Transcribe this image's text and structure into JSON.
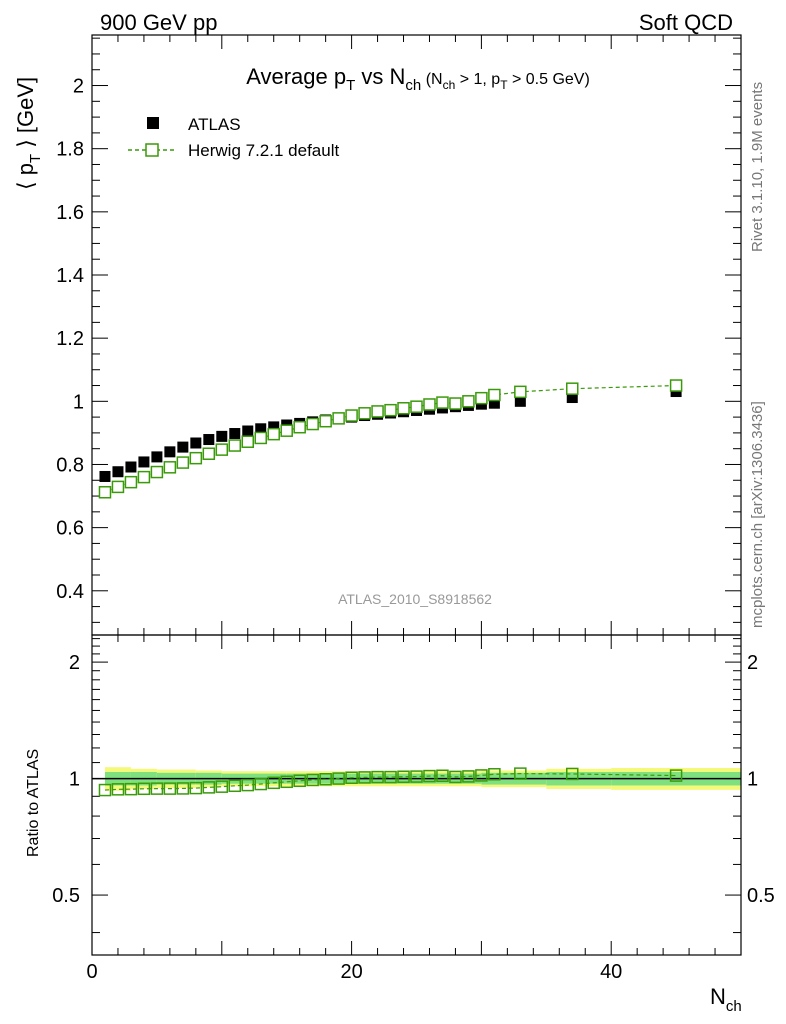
{
  "header": {
    "left": "900 GeV pp",
    "right": "Soft QCD"
  },
  "side_text": {
    "rivet": "Rivet 3.1.10,  1.9M events",
    "mcplots": "mcplots.cern.ch [arXiv:1306.3436]"
  },
  "chart_data": {
    "type": "scatter",
    "title": {
      "main": "Average p",
      "main_sub": "T",
      "vs": " vs N",
      "vs_sub": "ch",
      "cond1": " (N",
      "cond1_sub": "ch",
      "cond2": " > 1, p",
      "cond2_sub": "T",
      "cond3": " > 0.5 GeV)"
    },
    "watermark": "ATLAS_2010_S8918562",
    "ylabel": {
      "pre": "⟨ p",
      "sub": "T",
      "post": " ⟩  [GeV]"
    },
    "xlabel": {
      "main": "N",
      "sub": "ch"
    },
    "ratio_ylabel": "Ratio to ATLAS",
    "xlim": [
      0,
      50
    ],
    "ylim": [
      0.26,
      2.16
    ],
    "ratio_ylim": [
      0.35,
      2.35
    ],
    "x_ticks": [
      0,
      20,
      40
    ],
    "y_ticks": [
      0.4,
      0.6,
      0.8,
      1,
      1.2,
      1.4,
      1.6,
      1.8,
      2
    ],
    "ratio_y_ticks": [
      0.5,
      1,
      2
    ],
    "legend": {
      "position": "top-left",
      "entries": [
        "ATLAS",
        "Herwig 7.2.1 default"
      ]
    },
    "colors": {
      "data": "#000000",
      "mc": "#3a9a0a",
      "band_inner": "#7fe07f",
      "band_outer": "#f4f97a"
    },
    "series": [
      {
        "name": "ATLAS",
        "x": [
          1,
          2,
          3,
          4,
          5,
          6,
          7,
          8,
          9,
          10,
          11,
          12,
          13,
          14,
          15,
          16,
          17,
          18,
          19,
          20,
          21,
          22,
          23,
          24,
          25,
          26,
          27,
          28,
          29,
          30,
          31,
          33,
          37,
          45
        ],
        "y": [
          0.762,
          0.777,
          0.792,
          0.808,
          0.824,
          0.84,
          0.855,
          0.868,
          0.879,
          0.889,
          0.898,
          0.906,
          0.913,
          0.919,
          0.925,
          0.93,
          0.935,
          0.941,
          0.946,
          0.95,
          0.955,
          0.959,
          0.963,
          0.967,
          0.971,
          0.975,
          0.979,
          0.983,
          0.987,
          0.991,
          0.994,
          1.0,
          1.012,
          1.031
        ]
      },
      {
        "name": "Herwig 7.2.1 default",
        "x": [
          1,
          2,
          3,
          4,
          5,
          6,
          7,
          8,
          9,
          10,
          11,
          12,
          13,
          14,
          15,
          16,
          17,
          18,
          19,
          20,
          21,
          22,
          23,
          24,
          25,
          26,
          27,
          28,
          29,
          30,
          31,
          33,
          37,
          45
        ],
        "y": [
          0.712,
          0.729,
          0.744,
          0.76,
          0.776,
          0.791,
          0.806,
          0.82,
          0.834,
          0.847,
          0.86,
          0.872,
          0.884,
          0.896,
          0.907,
          0.918,
          0.928,
          0.937,
          0.946,
          0.955,
          0.962,
          0.968,
          0.972,
          0.978,
          0.983,
          0.99,
          0.996,
          0.993,
          1.0,
          1.01,
          1.02,
          1.03,
          1.04,
          1.05
        ],
        "ratio": [
          0.934,
          0.938,
          0.939,
          0.941,
          0.942,
          0.942,
          0.943,
          0.945,
          0.949,
          0.953,
          0.958,
          0.962,
          0.968,
          0.975,
          0.981,
          0.987,
          0.992,
          0.996,
          1.0,
          1.005,
          1.007,
          1.009,
          1.009,
          1.011,
          1.012,
          1.015,
          1.017,
          1.01,
          1.013,
          1.019,
          1.026,
          1.03,
          1.028,
          1.018
        ]
      }
    ],
    "ratio_band": {
      "edges": [
        1,
        3,
        5,
        8,
        10,
        15,
        20,
        25,
        30,
        35,
        40,
        50
      ],
      "inner": [
        0.04,
        0.04,
        0.035,
        0.035,
        0.03,
        0.03,
        0.03,
        0.03,
        0.035,
        0.04,
        0.04
      ],
      "outer": [
        0.07,
        0.06,
        0.055,
        0.05,
        0.045,
        0.045,
        0.045,
        0.045,
        0.05,
        0.06,
        0.065
      ]
    }
  }
}
